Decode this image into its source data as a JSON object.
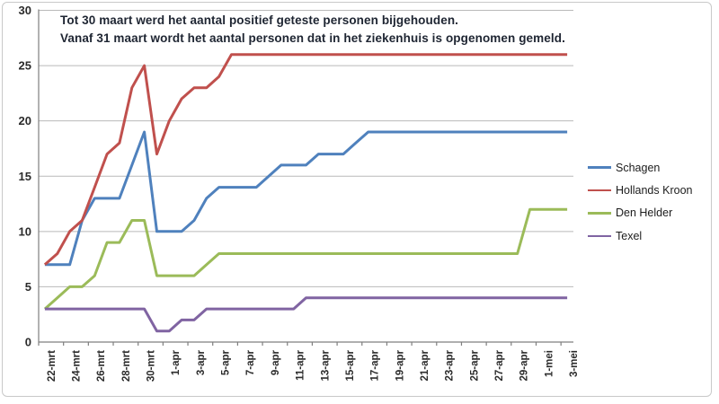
{
  "annotation": {
    "line1": "Tot 30 maart werd het aantal positief geteste personen bijgehouden.",
    "line2": "Vanaf 31 maart wordt het aantal personen dat in het ziekenhuis is opgenomen gemeld."
  },
  "chart_data": {
    "type": "line",
    "title": "",
    "xlabel": "",
    "ylabel": "",
    "ylim": [
      0,
      30
    ],
    "y_ticks": [
      0,
      5,
      10,
      15,
      20,
      25,
      30
    ],
    "grid": true,
    "legend_position": "right",
    "categories": [
      "22-mrt",
      "23-mrt",
      "24-mrt",
      "25-mrt",
      "26-mrt",
      "27-mrt",
      "28-mrt",
      "29-mrt",
      "30-mrt",
      "31-mrt",
      "1-apr",
      "2-apr",
      "3-apr",
      "4-apr",
      "5-apr",
      "6-apr",
      "7-apr",
      "8-apr",
      "9-apr",
      "10-apr",
      "11-apr",
      "12-apr",
      "13-apr",
      "14-apr",
      "15-apr",
      "16-apr",
      "17-apr",
      "18-apr",
      "19-apr",
      "20-apr",
      "21-apr",
      "22-apr",
      "23-apr",
      "24-apr",
      "25-apr",
      "26-apr",
      "27-apr",
      "28-apr",
      "29-apr",
      "30-apr",
      "1-mei",
      "2-mei",
      "3-mei"
    ],
    "x_tick_labels": [
      "22-mrt",
      "24-mrt",
      "26-mrt",
      "28-mrt",
      "30-mrt",
      "1-apr",
      "3-apr",
      "5-apr",
      "7-apr",
      "9-apr",
      "11-apr",
      "13-apr",
      "15-apr",
      "17-apr",
      "19-apr",
      "21-apr",
      "23-apr",
      "25-apr",
      "27-apr",
      "29-apr",
      "1-mei",
      "3-mei"
    ],
    "series": [
      {
        "name": "Schagen",
        "color": "#4F81BD",
        "values": [
          7,
          7,
          7,
          11,
          13,
          13,
          13,
          16,
          19,
          10,
          10,
          10,
          11,
          13,
          14,
          14,
          14,
          14,
          15,
          16,
          16,
          16,
          17,
          17,
          17,
          18,
          19,
          19,
          19,
          19,
          19,
          19,
          19,
          19,
          19,
          19,
          19,
          19,
          19,
          19,
          19,
          19,
          19
        ]
      },
      {
        "name": "Hollands Kroon",
        "color": "#C0504D",
        "values": [
          7,
          8,
          10,
          11,
          14,
          17,
          18,
          23,
          25,
          17,
          20,
          22,
          23,
          23,
          24,
          26,
          26,
          26,
          26,
          26,
          26,
          26,
          26,
          26,
          26,
          26,
          26,
          26,
          26,
          26,
          26,
          26,
          26,
          26,
          26,
          26,
          26,
          26,
          26,
          26,
          26,
          26,
          26
        ]
      },
      {
        "name": "Den Helder",
        "color": "#9BBB59",
        "values": [
          3,
          4,
          5,
          5,
          6,
          9,
          9,
          11,
          11,
          6,
          6,
          6,
          6,
          7,
          8,
          8,
          8,
          8,
          8,
          8,
          8,
          8,
          8,
          8,
          8,
          8,
          8,
          8,
          8,
          8,
          8,
          8,
          8,
          8,
          8,
          8,
          8,
          8,
          8,
          12,
          12,
          12,
          12
        ]
      },
      {
        "name": "Texel",
        "color": "#8064A2",
        "values": [
          3,
          3,
          3,
          3,
          3,
          3,
          3,
          3,
          3,
          1,
          1,
          2,
          2,
          3,
          3,
          3,
          3,
          3,
          3,
          3,
          3,
          4,
          4,
          4,
          4,
          4,
          4,
          4,
          4,
          4,
          4,
          4,
          4,
          4,
          4,
          4,
          4,
          4,
          4,
          4,
          4,
          4,
          4
        ]
      }
    ],
    "colors": {
      "axis": "#7f7f7f",
      "grid": "#b9b9b9",
      "tick_label": "#2b2b2b",
      "annotation_text": "#1e2532",
      "background": "#ffffff",
      "frame_border": "#c9c9c9"
    }
  }
}
